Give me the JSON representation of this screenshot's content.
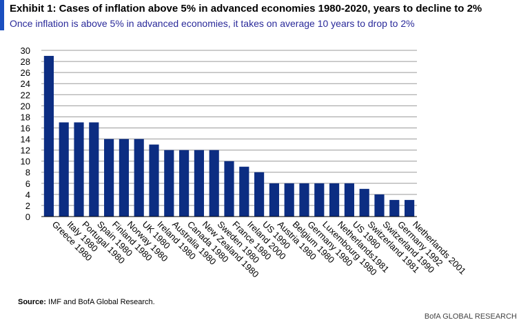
{
  "header": {
    "title": "Exhibit 1: Cases of inflation above 5% in advanced economies 1980-2020, years to decline to 2%",
    "subtitle": "Once inflation is above 5% in advanced economies, it takes on average 10 years to drop to 2%"
  },
  "footer": {
    "source_label": "Source:",
    "source_text": "IMF and BofA Global Research.",
    "brand": "BofA GLOBAL RESEARCH"
  },
  "colors": {
    "bar": "#0c2d82",
    "grid": "#9a9a9a",
    "accent": "#1a4fbf",
    "subtitle": "#2a2a9a"
  },
  "chart_data": {
    "type": "bar",
    "categories": [
      "Greece 1980",
      "Italy 1980",
      "Portugal 1980",
      "Spain 1980",
      "Finland 1980",
      "Norway 1980",
      "UK 1980",
      "Ireland 1980",
      "Australia 1980",
      "Canada 1980",
      "New Zealand 1980",
      "Sweden 1980",
      "France 1980",
      "Ireland 2000",
      "US 1990",
      "Austria 1980",
      "Belgium 1980",
      "Germany 1980",
      "Luxembourg 1980",
      "Netherlands1981",
      "US 1980",
      "Switzerland 1981",
      "Switzerland 1990",
      "Germany 1992",
      "Netherlands 2001"
    ],
    "values": [
      29,
      17,
      17,
      17,
      14,
      14,
      14,
      13,
      12,
      12,
      12,
      12,
      10,
      9,
      8,
      6,
      6,
      6,
      6,
      6,
      6,
      5,
      4,
      3,
      3
    ],
    "ylim": [
      0,
      30
    ],
    "yticks": [
      0,
      2,
      4,
      6,
      8,
      10,
      12,
      14,
      16,
      18,
      20,
      22,
      24,
      26,
      28,
      30
    ],
    "grid": true,
    "xlabel": "",
    "ylabel": ""
  }
}
